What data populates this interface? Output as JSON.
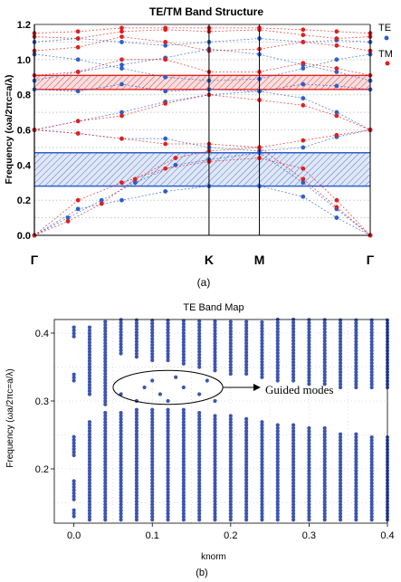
{
  "colors": {
    "te": "#2f5fc9",
    "tm": "#e02020",
    "te_dots": "#3d55b0",
    "axis": "#000000",
    "grid": "#bdbdbd"
  },
  "chart_data": [
    {
      "type": "line",
      "title": "TE/TM Band Structure",
      "ylabel": "Frequency (ωa/2πc=a/λ)",
      "xlabel": "",
      "caption": "(a)",
      "x_ticks": [
        {
          "label": "Γ",
          "pos": 0
        },
        {
          "label": "K",
          "pos": 0.52
        },
        {
          "label": "M",
          "pos": 0.67
        },
        {
          "label": "Γ",
          "pos": 1
        }
      ],
      "ylim": [
        0,
        1.2
      ],
      "y_ticks": [
        "0.0",
        "0.2",
        "0.4",
        "0.6",
        "0.8",
        "1.0",
        "1.2"
      ],
      "grid": "horizontal dotted",
      "legend": [
        {
          "name": "TE",
          "color": "#2f5fc9"
        },
        {
          "name": "TM",
          "color": "#e02020"
        }
      ],
      "gaps": [
        {
          "polarization": "TE",
          "from": 0.28,
          "to": 0.47
        },
        {
          "polarization": "TM",
          "from": 0.83,
          "to": 0.91
        }
      ],
      "series": [
        {
          "name": "TE",
          "bands": [
            [
              [
                0,
                0
              ],
              [
                0.13,
                0.15
              ],
              [
                0.26,
                0.2
              ],
              [
                0.39,
                0.25
              ],
              [
                0.52,
                0.28
              ],
              [
                0.67,
                0.28
              ],
              [
                0.8,
                0.22
              ],
              [
                0.9,
                0.1
              ],
              [
                1,
                0
              ]
            ],
            [
              [
                0,
                0
              ],
              [
                0.1,
                0.1
              ],
              [
                0.2,
                0.2
              ],
              [
                0.3,
                0.3
              ],
              [
                0.42,
                0.4
              ],
              [
                0.52,
                0.43
              ],
              [
                0.67,
                0.47
              ],
              [
                0.8,
                0.3
              ],
              [
                0.9,
                0.15
              ],
              [
                1,
                0
              ]
            ],
            [
              [
                0,
                0.6
              ],
              [
                0.13,
                0.58
              ],
              [
                0.26,
                0.55
              ],
              [
                0.39,
                0.55
              ],
              [
                0.52,
                0.5
              ],
              [
                0.67,
                0.48
              ],
              [
                0.8,
                0.5
              ],
              [
                0.9,
                0.56
              ],
              [
                1,
                0.6
              ]
            ],
            [
              [
                0,
                0.6
              ],
              [
                0.13,
                0.65
              ],
              [
                0.26,
                0.7
              ],
              [
                0.39,
                0.76
              ],
              [
                0.52,
                0.8
              ],
              [
                0.67,
                0.82
              ],
              [
                0.8,
                0.78
              ],
              [
                0.9,
                0.7
              ],
              [
                1,
                0.6
              ]
            ],
            [
              [
                0,
                0.83
              ],
              [
                0.13,
                0.82
              ],
              [
                0.26,
                0.86
              ],
              [
                0.39,
                0.82
              ],
              [
                0.52,
                0.83
              ],
              [
                0.67,
                0.82
              ],
              [
                0.8,
                0.86
              ],
              [
                0.9,
                0.85
              ],
              [
                1,
                0.83
              ]
            ],
            [
              [
                0,
                0.88
              ],
              [
                0.13,
                0.93
              ],
              [
                0.26,
                0.97
              ],
              [
                0.39,
                1.01
              ],
              [
                0.52,
                1.06
              ],
              [
                0.67,
                1.03
              ],
              [
                0.8,
                0.97
              ],
              [
                0.9,
                0.93
              ],
              [
                1,
                0.88
              ]
            ],
            [
              [
                0,
                1.03
              ],
              [
                0.13,
                1.0
              ],
              [
                0.26,
                0.95
              ],
              [
                0.39,
                0.9
              ],
              [
                0.52,
                0.88
              ],
              [
                0.67,
                0.89
              ],
              [
                0.8,
                0.95
              ],
              [
                0.9,
                1.0
              ],
              [
                1,
                1.03
              ]
            ],
            [
              [
                0,
                1.1
              ],
              [
                0.13,
                1.12
              ],
              [
                0.26,
                1.1
              ],
              [
                0.39,
                1.08
              ],
              [
                0.52,
                1.1
              ],
              [
                0.67,
                1.12
              ],
              [
                0.8,
                1.1
              ],
              [
                0.9,
                1.11
              ],
              [
                1,
                1.1
              ]
            ]
          ]
        },
        {
          "name": "TM",
          "bands": [
            [
              [
                0,
                0
              ],
              [
                0.13,
                0.2
              ],
              [
                0.26,
                0.3
              ],
              [
                0.39,
                0.38
              ],
              [
                0.52,
                0.42
              ],
              [
                0.67,
                0.44
              ],
              [
                0.8,
                0.38
              ],
              [
                0.9,
                0.2
              ],
              [
                1,
                0
              ]
            ],
            [
              [
                0,
                0
              ],
              [
                0.1,
                0.08
              ],
              [
                0.2,
                0.18
              ],
              [
                0.3,
                0.32
              ],
              [
                0.42,
                0.44
              ],
              [
                0.52,
                0.48
              ],
              [
                0.67,
                0.5
              ],
              [
                0.8,
                0.32
              ],
              [
                0.9,
                0.16
              ],
              [
                1,
                0
              ]
            ],
            [
              [
                0,
                0.6
              ],
              [
                0.13,
                0.58
              ],
              [
                0.26,
                0.55
              ],
              [
                0.39,
                0.52
              ],
              [
                0.52,
                0.52
              ],
              [
                0.67,
                0.5
              ],
              [
                0.8,
                0.54
              ],
              [
                0.9,
                0.57
              ],
              [
                1,
                0.6
              ]
            ],
            [
              [
                0,
                0.6
              ],
              [
                0.13,
                0.65
              ],
              [
                0.26,
                0.68
              ],
              [
                0.39,
                0.75
              ],
              [
                0.52,
                0.8
              ],
              [
                0.67,
                0.77
              ],
              [
                0.8,
                0.74
              ],
              [
                0.9,
                0.68
              ],
              [
                1,
                0.6
              ]
            ],
            [
              [
                0,
                0.91
              ],
              [
                0.13,
                0.93
              ],
              [
                0.26,
                1.0
              ],
              [
                0.39,
                1.0
              ],
              [
                0.52,
                0.93
              ],
              [
                0.67,
                0.93
              ],
              [
                0.8,
                0.98
              ],
              [
                0.9,
                0.95
              ],
              [
                1,
                0.91
              ]
            ],
            [
              [
                0,
                1.05
              ],
              [
                0.13,
                1.07
              ],
              [
                0.26,
                1.13
              ],
              [
                0.39,
                1.1
              ],
              [
                0.52,
                1.05
              ],
              [
                0.67,
                1.06
              ],
              [
                0.8,
                1.1
              ],
              [
                0.9,
                1.08
              ],
              [
                1,
                1.05
              ]
            ],
            [
              [
                0,
                1.13
              ],
              [
                0.13,
                1.12
              ],
              [
                0.26,
                1.16
              ],
              [
                0.39,
                1.17
              ],
              [
                0.52,
                1.16
              ],
              [
                0.67,
                1.17
              ],
              [
                0.8,
                1.14
              ],
              [
                0.9,
                1.12
              ],
              [
                1,
                1.13
              ]
            ],
            [
              [
                0,
                1.15
              ],
              [
                0.13,
                1.16
              ],
              [
                0.26,
                1.18
              ],
              [
                0.39,
                1.18
              ],
              [
                0.52,
                1.18
              ],
              [
                0.67,
                1.18
              ],
              [
                0.8,
                1.17
              ],
              [
                0.9,
                1.16
              ],
              [
                1,
                1.15
              ]
            ]
          ]
        }
      ]
    },
    {
      "type": "scatter",
      "title": "TE Band Map",
      "xlabel": "knorm",
      "ylabel": "Frequency (ωa/2πc=a/λ)",
      "caption": "(b)",
      "xlim": [
        -0.025,
        0.4
      ],
      "ylim": [
        0.12,
        0.42
      ],
      "x_ticks": [
        "0.0",
        "0.1",
        "0.2",
        "0.3",
        "0.4"
      ],
      "y_ticks": [
        "0.2",
        "0.3",
        "0.4"
      ],
      "grid": "dotted",
      "annotation": "Guided modes",
      "guided_modes_region": {
        "k": [
          0.05,
          0.19
        ],
        "f": [
          0.295,
          0.345
        ]
      },
      "columns": [
        {
          "k": 0.0,
          "bands": [
            [
              0.13,
              0.14
            ],
            [
              0.155,
              0.185
            ],
            [
              0.22,
              0.25
            ],
            [
              0.33,
              0.34
            ],
            [
              0.395,
              0.41
            ]
          ]
        },
        {
          "k": 0.02,
          "bands": [
            [
              0.125,
              0.27
            ],
            [
              0.31,
              0.35
            ],
            [
              0.35,
              0.41
            ]
          ]
        },
        {
          "k": 0.04,
          "bands": [
            [
              0.125,
              0.285
            ],
            [
              0.295,
              0.42
            ]
          ]
        },
        {
          "k": 0.06,
          "bands": [
            [
              0.125,
              0.285
            ],
            [
              0.37,
              0.42
            ]
          ]
        },
        {
          "k": 0.08,
          "bands": [
            [
              0.125,
              0.29
            ],
            [
              0.365,
              0.42
            ]
          ]
        },
        {
          "k": 0.1,
          "bands": [
            [
              0.125,
              0.29
            ],
            [
              0.36,
              0.42
            ]
          ]
        },
        {
          "k": 0.12,
          "bands": [
            [
              0.125,
              0.29
            ],
            [
              0.36,
              0.42
            ]
          ]
        },
        {
          "k": 0.14,
          "bands": [
            [
              0.125,
              0.29
            ],
            [
              0.355,
              0.42
            ]
          ]
        },
        {
          "k": 0.16,
          "bands": [
            [
              0.125,
              0.285
            ],
            [
              0.35,
              0.42
            ]
          ]
        },
        {
          "k": 0.18,
          "bands": [
            [
              0.125,
              0.28
            ],
            [
              0.345,
              0.42
            ]
          ]
        },
        {
          "k": 0.2,
          "bands": [
            [
              0.125,
              0.28
            ],
            [
              0.34,
              0.42
            ]
          ]
        },
        {
          "k": 0.22,
          "bands": [
            [
              0.125,
              0.275
            ],
            [
              0.34,
              0.42
            ]
          ]
        },
        {
          "k": 0.24,
          "bands": [
            [
              0.125,
              0.27
            ],
            [
              0.335,
              0.42
            ]
          ]
        },
        {
          "k": 0.26,
          "bands": [
            [
              0.125,
              0.265
            ],
            [
              0.33,
              0.42
            ]
          ]
        },
        {
          "k": 0.28,
          "bands": [
            [
              0.125,
              0.265
            ],
            [
              0.33,
              0.42
            ]
          ]
        },
        {
          "k": 0.3,
          "bands": [
            [
              0.125,
              0.26
            ],
            [
              0.325,
              0.42
            ]
          ]
        },
        {
          "k": 0.32,
          "bands": [
            [
              0.125,
              0.26
            ],
            [
              0.325,
              0.42
            ]
          ]
        },
        {
          "k": 0.34,
          "bands": [
            [
              0.125,
              0.255
            ],
            [
              0.32,
              0.42
            ]
          ]
        },
        {
          "k": 0.36,
          "bands": [
            [
              0.125,
              0.255
            ],
            [
              0.32,
              0.42
            ]
          ]
        },
        {
          "k": 0.38,
          "bands": [
            [
              0.125,
              0.25
            ],
            [
              0.32,
              0.42
            ]
          ]
        },
        {
          "k": 0.4,
          "bands": [
            [
              0.125,
              0.25
            ],
            [
              0.32,
              0.42
            ]
          ]
        }
      ],
      "guided_points": [
        [
          0.06,
          0.31
        ],
        [
          0.08,
          0.3
        ],
        [
          0.09,
          0.32
        ],
        [
          0.1,
          0.33
        ],
        [
          0.11,
          0.31
        ],
        [
          0.12,
          0.3
        ],
        [
          0.13,
          0.335
        ],
        [
          0.14,
          0.32
        ],
        [
          0.16,
          0.31
        ],
        [
          0.17,
          0.33
        ],
        [
          0.18,
          0.3
        ]
      ]
    }
  ]
}
